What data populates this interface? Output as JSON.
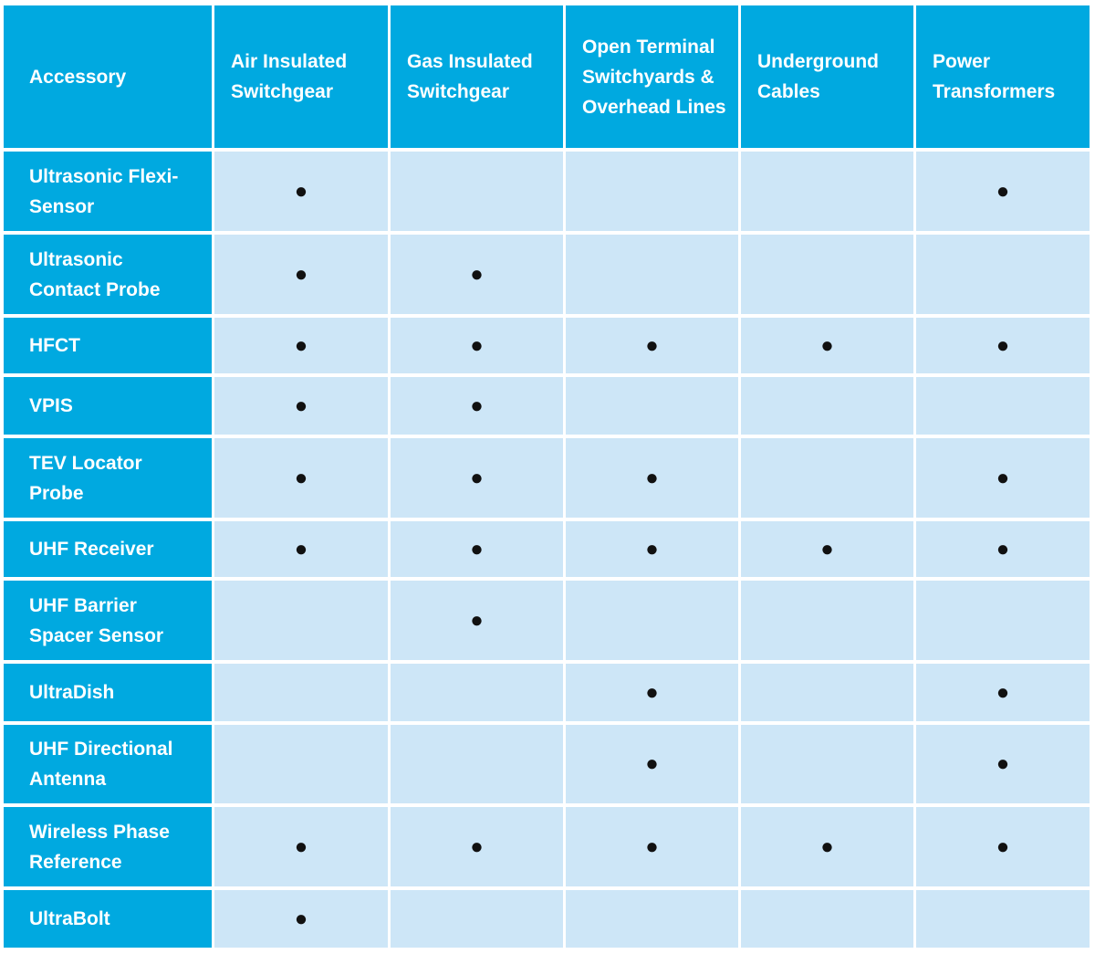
{
  "table": {
    "header": [
      "Accessory",
      "Air Insulated Switchgear",
      "Gas Insulated Switchgear",
      "Open Terminal Switchyards & Overhead Lines",
      "Underground Cables",
      "Power Transformers"
    ],
    "rows": [
      {
        "label": "Ultrasonic Flexi-Sensor",
        "cells": [
          "●",
          null,
          null,
          null,
          "●"
        ]
      },
      {
        "label": "Ultrasonic Contact Probe",
        "cells": [
          "●",
          "●",
          null,
          null,
          null
        ]
      },
      {
        "label": "HFCT",
        "cells": [
          "●",
          "●",
          "●",
          "●",
          "●"
        ]
      },
      {
        "label": "VPIS",
        "cells": [
          "●",
          "●",
          null,
          null,
          null
        ]
      },
      {
        "label": "TEV Locator Probe",
        "cells": [
          "●",
          "●",
          "●",
          null,
          "●"
        ]
      },
      {
        "label": "UHF Receiver",
        "cells": [
          "●",
          "●",
          "●",
          "●",
          "●"
        ]
      },
      {
        "label": "UHF Barrier Spacer Sensor",
        "cells": [
          null,
          "●",
          null,
          null,
          null
        ]
      },
      {
        "label": "UltraDish",
        "cells": [
          null,
          null,
          "●",
          null,
          "●"
        ]
      },
      {
        "label": "UHF Directional Antenna",
        "cells": [
          null,
          null,
          "●",
          null,
          "●"
        ]
      },
      {
        "label": "Wireless Phase Reference",
        "cells": [
          "●",
          "●",
          "●",
          "●",
          "●"
        ]
      },
      {
        "label": "UltraBolt",
        "cells": [
          "●",
          null,
          null,
          null,
          null
        ]
      }
    ]
  }
}
